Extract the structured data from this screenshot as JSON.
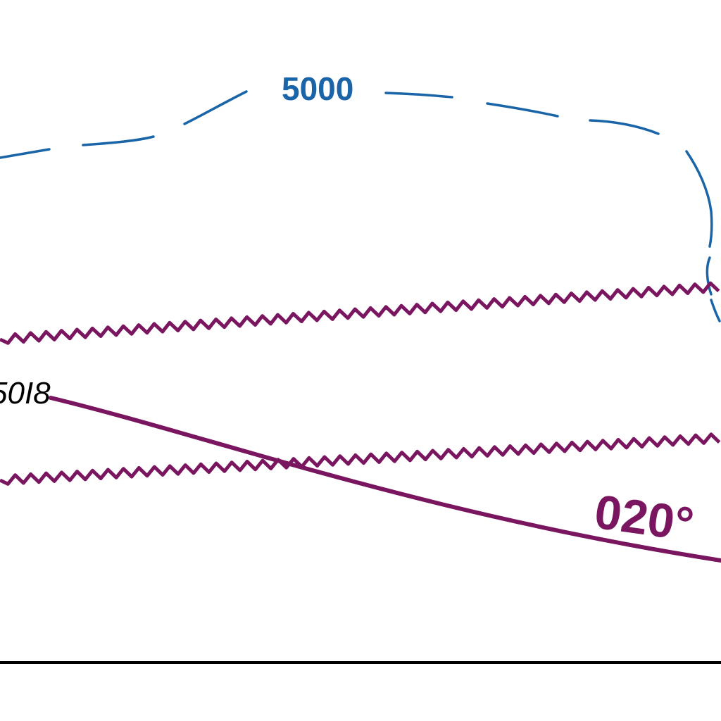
{
  "map": {
    "contour": {
      "label": "5000",
      "color": "#1a64a8",
      "line_style": "dashed"
    },
    "airway": {
      "course_label": "020°",
      "color": "#7a1660"
    },
    "waypoint": {
      "label": "50I8",
      "color": "#000000"
    },
    "boundary_lines": {
      "count": 2,
      "style": "zigzag",
      "color": "#7a1660"
    },
    "frame_line": {
      "color": "#000000"
    }
  }
}
